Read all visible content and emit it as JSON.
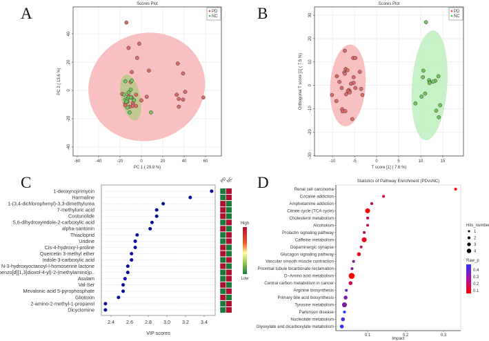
{
  "panels": {
    "a": "A",
    "b": "B",
    "c": "C",
    "d": "D"
  },
  "chart_data": [
    {
      "type": "scatter",
      "panel": "A",
      "title": "Scores Plot",
      "xlabel": "PC 1 ( 29.8 %)",
      "ylabel": "PC 2 ( 13.6 %)",
      "xlim": [
        -65,
        75
      ],
      "ylim": [
        -45,
        58
      ],
      "xticks": [
        "-60",
        "-40",
        "-20",
        "0",
        "20",
        "40",
        "60"
      ],
      "yticks": [
        "-40",
        "-20",
        "0",
        "20",
        "40"
      ],
      "grid": true,
      "legend": "top-right",
      "series": [
        {
          "name": "PD",
          "color": "#e8483f",
          "fill": "#e06a66",
          "ellipse": {
            "cx": 5,
            "cy": 2.5,
            "rx": 55,
            "ry": 38,
            "angle": -18,
            "color": "#f7b9b9"
          },
          "points": [
            [
              -14,
              48
            ],
            [
              -12,
              30
            ],
            [
              -2,
              33
            ],
            [
              -4,
              23
            ],
            [
              -9,
              13
            ],
            [
              7,
              14
            ],
            [
              34,
              19
            ],
            [
              39,
              12
            ],
            [
              -10,
              6
            ],
            [
              33,
              -3
            ],
            [
              41,
              -1
            ],
            [
              35,
              -6
            ],
            [
              39,
              -6.5
            ],
            [
              35,
              -11.5
            ],
            [
              58,
              -5
            ],
            [
              5,
              -4.5
            ],
            [
              0,
              -7
            ],
            [
              -18,
              -2.5
            ],
            [
              -15,
              -9
            ],
            [
              -15,
              -10.5
            ],
            [
              -12,
              -4
            ],
            [
              -11,
              -11.5
            ],
            [
              -8,
              -9
            ],
            [
              -8,
              -11
            ],
            [
              -5,
              -3
            ],
            [
              -5,
              -11
            ],
            [
              -7,
              -7
            ],
            [
              -9,
              -5
            ],
            [
              -13,
              -8
            ]
          ]
        },
        {
          "name": "NC",
          "color": "#3ec43e",
          "fill": "#72c85e",
          "ellipse": {
            "cx": -10,
            "cy": -5,
            "rx": 9,
            "ry": 16.5,
            "angle": -12,
            "color": "#b9c98a"
          },
          "points": [
            [
              -15,
              6.5
            ],
            [
              -9,
              7
            ],
            [
              -10,
              0.5
            ],
            [
              -12,
              -1.5
            ],
            [
              -16,
              -3
            ],
            [
              -15,
              -6.5
            ],
            [
              -13,
              -6
            ],
            [
              -12,
              -5
            ],
            [
              -10,
              -5
            ],
            [
              -7,
              -7
            ],
            [
              -13,
              -12
            ],
            [
              -11,
              -15.5
            ],
            [
              9,
              -15.5
            ],
            [
              -14,
              -8
            ]
          ]
        }
      ]
    },
    {
      "type": "scatter",
      "panel": "B",
      "title": "Scores Plot",
      "xlabel": "T score [1] ( 7.6 %)",
      "ylabel": "Orthogonal T score [1] ( 7.5 %)",
      "xlim": [
        -14,
        19
      ],
      "ylim": [
        -30,
        34
      ],
      "xticks": [
        "-10",
        "-5",
        "0",
        "5",
        "10",
        "15"
      ],
      "yticks": [
        "-30",
        "-20",
        "-10",
        "0",
        "10",
        "20",
        "30"
      ],
      "grid": true,
      "legend": "top-right",
      "series": [
        {
          "name": "PD",
          "color": "#e8483f",
          "fill": "#e06a66",
          "ellipse": {
            "cx": -6.5,
            "cy": 0,
            "rx": 4,
            "ry": 17.5,
            "angle": 4,
            "color": "#f7b9b9"
          },
          "points": [
            [
              -7.2,
              14.8
            ],
            [
              -5.3,
              11.7
            ],
            [
              -4.8,
              11.7
            ],
            [
              -7,
              7
            ],
            [
              -6.6,
              6.5
            ],
            [
              -7.3,
              5.5
            ],
            [
              -7.2,
              5
            ],
            [
              -3.8,
              5.8
            ],
            [
              -9,
              3.9
            ],
            [
              -5.2,
              3.5
            ],
            [
              -8.4,
              1.5
            ],
            [
              -5.2,
              1.1
            ],
            [
              -5.8,
              0.7
            ],
            [
              -7.9,
              -1.1
            ],
            [
              -4.8,
              -1.1
            ],
            [
              -3.5,
              -1.5
            ],
            [
              -6.3,
              -2
            ],
            [
              -6.1,
              -2.5
            ],
            [
              -6.5,
              -2.4
            ],
            [
              -6.1,
              -3
            ],
            [
              -6.9,
              -3.8
            ],
            [
              -10.1,
              -4.1
            ],
            [
              -3.2,
              -4.1
            ],
            [
              -9.1,
              -6.7
            ],
            [
              -7.8,
              -10.2
            ],
            [
              -7.7,
              -11.1
            ],
            [
              -7.1,
              -11
            ],
            [
              -5.5,
              -14.4
            ]
          ]
        },
        {
          "name": "NC",
          "color": "#3ec43e",
          "fill": "#72c85e",
          "ellipse": {
            "cx": 12,
            "cy": 0,
            "rx": 4,
            "ry": 23.5,
            "angle": 4,
            "color": "#bdeebd"
          },
          "points": [
            [
              11.2,
              27
            ],
            [
              10.6,
              6.3
            ],
            [
              10.5,
              3.5
            ],
            [
              14,
              3.9
            ],
            [
              11.9,
              2.2
            ],
            [
              13.3,
              2
            ],
            [
              12,
              1.4
            ],
            [
              12,
              1
            ],
            [
              12.8,
              1.6
            ],
            [
              11,
              -3.5
            ],
            [
              10.2,
              -4.8
            ],
            [
              8.8,
              -7.7
            ],
            [
              14.4,
              -8.5
            ],
            [
              13.5,
              -10.8
            ],
            [
              14.1,
              -13.6
            ]
          ]
        }
      ]
    },
    {
      "type": "scatter",
      "panel": "C",
      "xlabel": "VIP scores",
      "xlim": [
        2.3,
        3.52
      ],
      "xticks": [
        "2.4",
        "2.6",
        "2.8",
        "3.0",
        "3.2",
        "3.4"
      ],
      "point_color": "#0a0aa0",
      "heatmap_columns": [
        "PD",
        "NC"
      ],
      "heatmap_legend": {
        "high": "High",
        "low": "Low",
        "high_color": "#b01030",
        "low_color": "#1a7a3a"
      },
      "categories": [
        "1-deoxynojirimycin",
        "Harmaline",
        "1-(3,4-dichlorophenyl)-3,3-dimethylurea",
        "7-methyluric acid",
        "Costunolide",
        "5,6-dihydroxyindole-2-carboxylic acid",
        "alpha-santonin",
        "Thiacloprid",
        "Uridine",
        "Cis-4-hydroxy-l-proline",
        "Quercetin 3-methyl ether",
        "Indole-3-carboxylic acid",
        "N-3-hydroxyoctanoyl-l-homoserine lactone",
        "1-(benzo[d][1,3]dioxol-4-yl)-2-(methylamino)p..",
        "Asulam",
        "Val-Ser",
        "Mevalonic acid 5-pyrophosphate",
        "Gliotoxin",
        "2-amino-2-methyl-1-propanol",
        "Dicyclomine"
      ],
      "values": [
        3.48,
        3.25,
        2.96,
        2.89,
        2.89,
        2.84,
        2.82,
        2.68,
        2.66,
        2.66,
        2.62,
        2.62,
        2.58,
        2.58,
        2.55,
        2.53,
        2.53,
        2.48,
        2.34,
        2.34
      ],
      "pd_level": [
        "low",
        "low",
        "high",
        "high",
        "high",
        "low",
        "high",
        "low",
        "low",
        "high",
        "high",
        "low",
        "high",
        "low",
        "low",
        "high",
        "low",
        "high",
        "low",
        "low"
      ]
    },
    {
      "type": "scatter",
      "panel": "D",
      "title": "Statistics of Pathway Enrichment (PDvsNC)",
      "xlabel": "Impact",
      "xlim": [
        0,
        0.345
      ],
      "xticks": [
        "0.1",
        "0.2",
        "0.3"
      ],
      "size_legend": {
        "title": "Hits_number",
        "levels": [
          "1",
          "2",
          "3",
          "4"
        ]
      },
      "color_legend": {
        "title": "Raw_p",
        "ticks": [
          "0.4",
          "0.3",
          "0.2",
          "0.1"
        ],
        "low_color": "#ff0000",
        "high_color": "#3030ff"
      },
      "categories": [
        "Renal cell carcinoma",
        "Cocaine addiction",
        "Amphetamine addiction",
        "Citrate cycle (TCA cycle)",
        "Cholesterol metabolism",
        "Alcoholism",
        "Prolactin signaling pathway",
        "Caffeine metabolism",
        "Dopaminergic synapse",
        "Glucagon signaling pathway",
        "Vascular smooth muscle contraction",
        "Proximal tubule bicarbonate reclamation",
        "D−Amino acid metabolism",
        "Central carbon metabolism in cancer",
        "Arginine biosynthesis",
        "Primary bile acid biosynthesis",
        "Tyrosine metabolism",
        "Parkinson disease",
        "Nucleotide metabolism",
        "Glyoxylate and dicarboxylate metabolism"
      ],
      "impact": [
        0.332,
        0.142,
        0.111,
        0.1,
        0.1,
        0.1,
        0.091,
        0.091,
        0.083,
        0.077,
        0.063,
        0.059,
        0.058,
        0.055,
        0.044,
        0.042,
        0.039,
        0.039,
        0.035,
        0.032
      ],
      "hits": [
        1,
        1,
        1,
        3,
        1,
        1,
        1,
        3,
        1,
        2,
        1,
        1,
        4,
        2,
        1,
        2,
        3,
        1,
        2,
        2
      ],
      "raw_p": [
        0.06,
        0.15,
        0.15,
        0.06,
        0.15,
        0.15,
        0.2,
        0.1,
        0.2,
        0.1,
        0.3,
        0.3,
        0.05,
        0.15,
        0.35,
        0.3,
        0.3,
        0.45,
        0.4,
        0.45
      ]
    }
  ]
}
